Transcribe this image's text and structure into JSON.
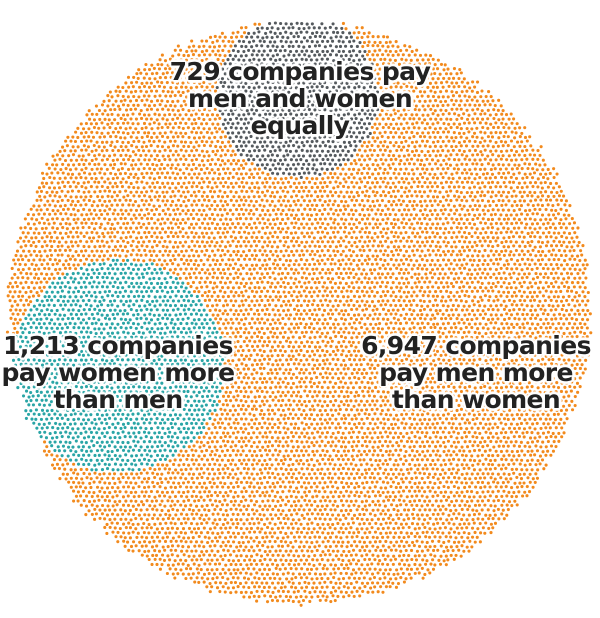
{
  "chart_data": {
    "type": "dot-cluster",
    "title": "",
    "groups": [
      {
        "key": "men_more",
        "count": 6947,
        "color": "#F28A1D",
        "label_lines": [
          "6,947 companies",
          "pay men more",
          "than women"
        ]
      },
      {
        "key": "women_more",
        "count": 1213,
        "color": "#2AA5A6",
        "label_lines": [
          "1,213 companies",
          "pay women more",
          "than men"
        ]
      },
      {
        "key": "equal",
        "count": 729,
        "color": "#555A5E",
        "label_lines": [
          "729 companies pay",
          "men and women",
          "equally"
        ]
      }
    ]
  }
}
